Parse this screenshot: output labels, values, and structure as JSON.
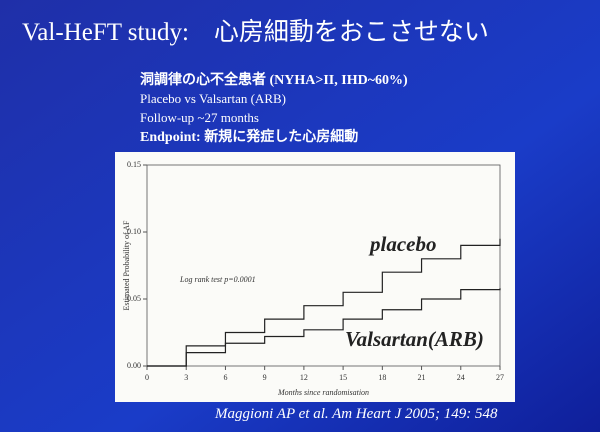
{
  "slide": {
    "title": "Val-HeFT study:　心房細動をおこさせない",
    "lines": [
      "洞調律の心不全患者 (NYHA>II, IHD~60%)",
      "Placebo vs Valsartan (ARB)",
      "Follow-up ~27 months",
      "Endpoint: 新規に発症した心房細動"
    ],
    "citation": "Maggioni AP et al. Am Heart J 2005; 149: 548"
  },
  "chart_data": {
    "type": "line",
    "x_label": "Months since randomisation",
    "y_label": "Estimated Probability of AF",
    "annotation": "Log rank test  p=0.0001",
    "x": [
      0,
      3,
      6,
      9,
      12,
      15,
      18,
      21,
      24,
      27
    ],
    "series": [
      {
        "name": "placebo",
        "color": "#222222",
        "values": [
          0,
          0.015,
          0.025,
          0.035,
          0.045,
          0.055,
          0.07,
          0.08,
          0.09,
          0.095
        ]
      },
      {
        "name": "Valsartan(ARB)",
        "color": "#222222",
        "values": [
          0,
          0.01,
          0.017,
          0.022,
          0.027,
          0.035,
          0.042,
          0.05,
          0.057,
          0.058
        ]
      }
    ],
    "xlim": [
      0,
      27
    ],
    "xticks": [
      0,
      3,
      6,
      9,
      12,
      15,
      18,
      21,
      24,
      27
    ],
    "ylim": [
      0,
      0.15
    ],
    "yticks": [
      {
        "value": 0,
        "label": "0.00"
      },
      {
        "value": 0.05,
        "label": "0.05"
      },
      {
        "value": 0.1,
        "label": "0.10"
      },
      {
        "value": 0.15,
        "label": "0.15"
      }
    ]
  }
}
